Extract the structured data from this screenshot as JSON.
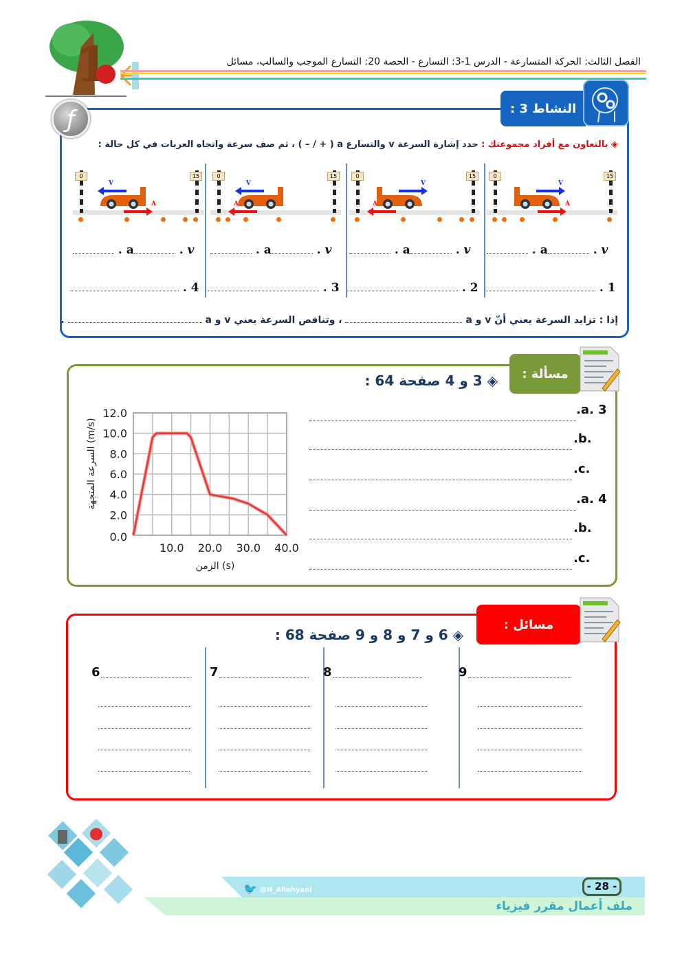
{
  "header": {
    "title": "الفصل الثالث: الحركة المتسارعة - الدرس 1-3: التسارع  - الحصة  20: التسارع الموجب والسالب، مسائل"
  },
  "activity": {
    "tab_label": "النشاط 3 :",
    "instruction_red": "◈ بالتعاون مع أفراد مجموعتك :",
    "instruction": "حدد إشارة السرعة v والتسارع a ( + / – ) ، ثم صف سرعة واتجاه العربات في كل حالة :",
    "panels": [
      {
        "number": "1",
        "v_dir": "right",
        "a_dir": "right",
        "start": "0",
        "end": "15"
      },
      {
        "number": "2",
        "v_dir": "right",
        "a_dir": "left",
        "start": "0",
        "end": "15"
      },
      {
        "number": "3",
        "v_dir": "left",
        "a_dir": "left",
        "start": "0",
        "end": "15"
      },
      {
        "number": "4",
        "v_dir": "left",
        "a_dir": "right",
        "start": "0",
        "end": "15"
      }
    ],
    "v_symbol": "v",
    "a_symbol": "a",
    "v_arrow": "V",
    "a_arrow": "A",
    "conclusion_1": "إذا : تزايد السرعة يعني أنّ  v  و  a",
    "conclusion_2": "، وتناقص السرعة يعني v و a"
  },
  "problem": {
    "tab_label": "مسألة :",
    "heading": "◈ 3 و  4  صفحة 64  :",
    "answers": [
      ".a. 3",
      ".b.",
      ".c.",
      ".a. 4",
      ".b.",
      ".c."
    ]
  },
  "problems": {
    "tab_label": "مسائل :",
    "heading": "◈ 6 و 7 و 8  و 9  صفحة 68 :",
    "columns": [
      "6",
      "7",
      "8",
      "9"
    ]
  },
  "chart_data": {
    "type": "line",
    "title": "",
    "xlabel": "الزمن (s)",
    "ylabel": "السرعة المتجهة (m/s)",
    "x_ticks": [
      "10.0",
      "20.0",
      "30.0",
      "40.0"
    ],
    "y_ticks": [
      "0.0",
      "2.0",
      "4.0",
      "6.0",
      "8.0",
      "10.0",
      "12.0"
    ],
    "xlim": [
      0,
      40
    ],
    "ylim": [
      0,
      12
    ],
    "grid": true,
    "x": [
      0,
      5,
      6,
      14,
      15,
      20,
      26,
      30,
      35,
      40
    ],
    "y": [
      0,
      9.6,
      10,
      10,
      9.6,
      4,
      3.6,
      3.1,
      2,
      0
    ],
    "line_color": "#e53935"
  },
  "footer": {
    "twitter": "@N_Allehyani",
    "page": "- 28 -",
    "course": "ملف أعمال مقرر فيزياء"
  },
  "colors": {
    "blue": "#1565c0",
    "green": "#7a9a3a",
    "red": "#ff0000",
    "navy": "#1a2a50"
  }
}
